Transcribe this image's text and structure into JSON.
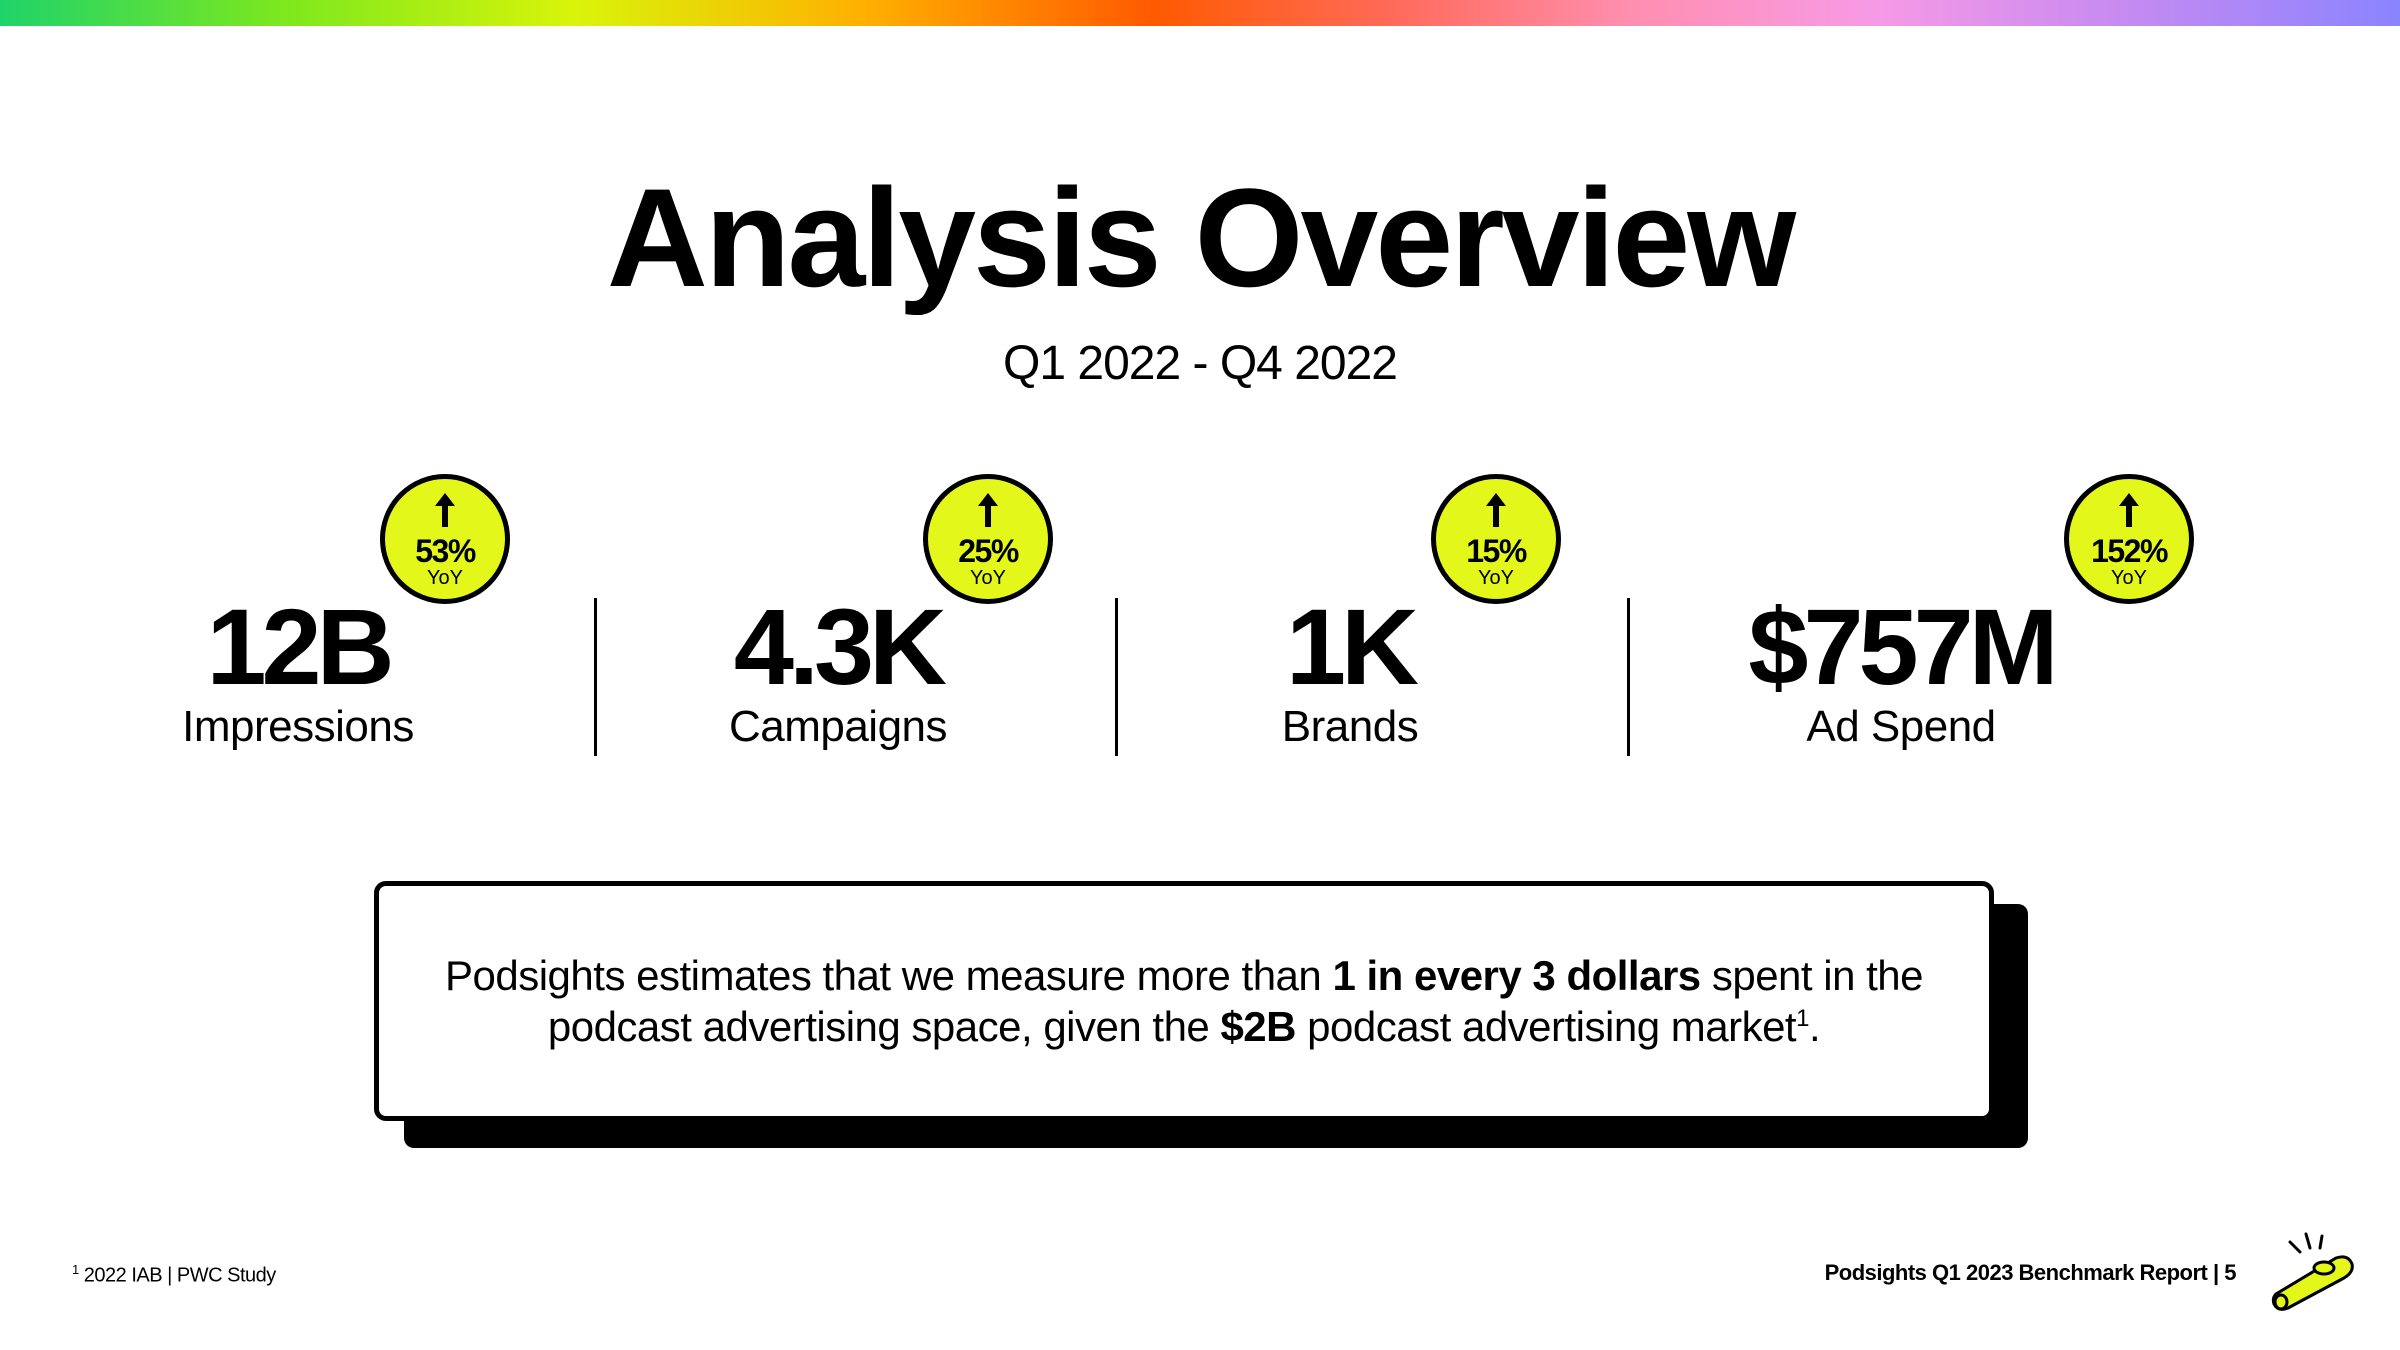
{
  "colors": {
    "accent_yellow": "#e3f71a",
    "text": "#000000",
    "background": "#ffffff"
  },
  "header": {
    "title": "Analysis Overview",
    "period": "Q1 2022 - Q4 2022"
  },
  "stats": [
    {
      "value": "12B",
      "label": "Impressions",
      "change": "53%",
      "change_unit": "YoY",
      "icon": "arrow-up-icon"
    },
    {
      "value": "4.3K",
      "label": "Campaigns",
      "change": "25%",
      "change_unit": "YoY",
      "icon": "arrow-up-icon"
    },
    {
      "value": "1K",
      "label": "Brands",
      "change": "15%",
      "change_unit": "YoY",
      "icon": "arrow-up-icon"
    },
    {
      "value": "$757M",
      "label": "Ad Spend",
      "change": "152%",
      "change_unit": "YoY",
      "icon": "arrow-up-icon"
    }
  ],
  "callout": {
    "part1": "Podsights estimates that we measure more than ",
    "bold1": "1 in every 3 dollars",
    "part2": " spent in the podcast advertising space, given the ",
    "bold2": "$2B",
    "part3": " podcast advertising market",
    "footnote_ref": "1",
    "end": "."
  },
  "footer": {
    "footnote_marker": "1",
    "footnote_text": " 2022 IAB | PWC Study",
    "report_label": "Podsights Q1 2023 Benchmark Report | 5",
    "logo_icon": "kazoo-logo-icon"
  }
}
